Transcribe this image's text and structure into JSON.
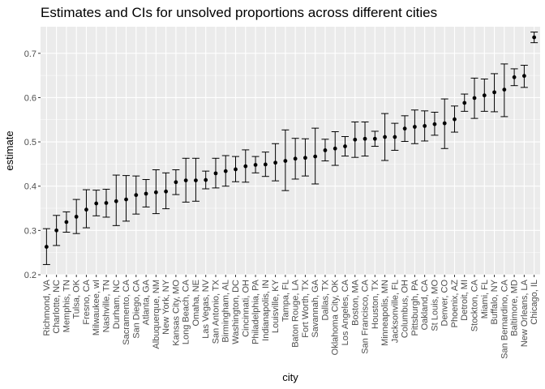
{
  "chart_data": {
    "type": "errorbar",
    "title": "Estimates and CIs for unsolved proportions across different cities",
    "xlabel": "city",
    "ylabel": "estimate",
    "ylim": [
      0.2,
      0.76
    ],
    "yticks": [
      0.2,
      0.3,
      0.4,
      0.5,
      0.6,
      0.7
    ],
    "grid": true,
    "panel_background": "#ebebeb",
    "point_color": "#000000",
    "categories": [
      "Richmond, VA",
      "Charlotte, NC",
      "Memphis, TN",
      "Tulsa, OK",
      "Fresno, CA",
      "Milwaukee, wI",
      "Nashville, TN",
      "Durham, NC",
      "Sacramento, CA",
      "San Diego, CA",
      "Atlanta, GA",
      "Albuquerque, NM",
      "New York, NY",
      "Kansas City, MO",
      "Long Beach, CA",
      "Omaha, NE",
      "Las Vegas, NV",
      "San Antonio, TX",
      "Birmingham, AL",
      "Washington, DC",
      "Cincinnati, OH",
      "Philadelphia, PA",
      "Indianapolis, IN",
      "Louisville, KY",
      "Tampa, FL",
      "Baton Rouge, LA",
      "Fort Worth, TX",
      "Savannah, GA",
      "Dallas, TX",
      "Oklahoma City, OK",
      "Los Angeles, CA",
      "Boston, MA",
      "San Francisco, CA",
      "Houston, TX",
      "Minneapolis, MN",
      "Jacksonville, FL",
      "Columbus, OH",
      "Pittsburgh, PA",
      "Oakland, CA",
      "St Louis, MO",
      "Denver, CO",
      "Phoenix, AZ",
      "Detroit, MI",
      "Stockton, CA",
      "Miami, FL",
      "Buffalo, NY",
      "San Bernardino, CA",
      "Baltimore, MD",
      "New Orleans, LA",
      "Chicago, IL"
    ],
    "estimate": [
      0.263,
      0.3,
      0.319,
      0.331,
      0.347,
      0.361,
      0.362,
      0.366,
      0.37,
      0.38,
      0.383,
      0.386,
      0.388,
      0.409,
      0.413,
      0.413,
      0.414,
      0.429,
      0.434,
      0.438,
      0.445,
      0.448,
      0.449,
      0.453,
      0.457,
      0.462,
      0.464,
      0.467,
      0.481,
      0.485,
      0.49,
      0.505,
      0.507,
      0.507,
      0.511,
      0.511,
      0.53,
      0.534,
      0.536,
      0.54,
      0.542,
      0.551,
      0.588,
      0.599,
      0.605,
      0.612,
      0.618,
      0.646,
      0.649,
      0.736
    ],
    "ci_low": [
      0.223,
      0.266,
      0.296,
      0.293,
      0.306,
      0.333,
      0.33,
      0.311,
      0.321,
      0.337,
      0.353,
      0.338,
      0.349,
      0.381,
      0.364,
      0.366,
      0.394,
      0.396,
      0.4,
      0.41,
      0.409,
      0.43,
      0.422,
      0.412,
      0.39,
      0.416,
      0.423,
      0.405,
      0.457,
      0.447,
      0.468,
      0.465,
      0.468,
      0.49,
      0.458,
      0.481,
      0.501,
      0.496,
      0.502,
      0.515,
      0.485,
      0.522,
      0.569,
      0.553,
      0.569,
      0.568,
      0.557,
      0.627,
      0.623,
      0.724
    ],
    "ci_high": [
      0.304,
      0.334,
      0.342,
      0.37,
      0.392,
      0.391,
      0.393,
      0.425,
      0.424,
      0.423,
      0.415,
      0.437,
      0.43,
      0.437,
      0.463,
      0.463,
      0.434,
      0.463,
      0.469,
      0.467,
      0.482,
      0.467,
      0.477,
      0.496,
      0.527,
      0.508,
      0.507,
      0.531,
      0.506,
      0.523,
      0.512,
      0.545,
      0.545,
      0.524,
      0.564,
      0.542,
      0.559,
      0.572,
      0.57,
      0.567,
      0.597,
      0.581,
      0.608,
      0.644,
      0.642,
      0.654,
      0.676,
      0.665,
      0.673,
      0.748
    ]
  }
}
